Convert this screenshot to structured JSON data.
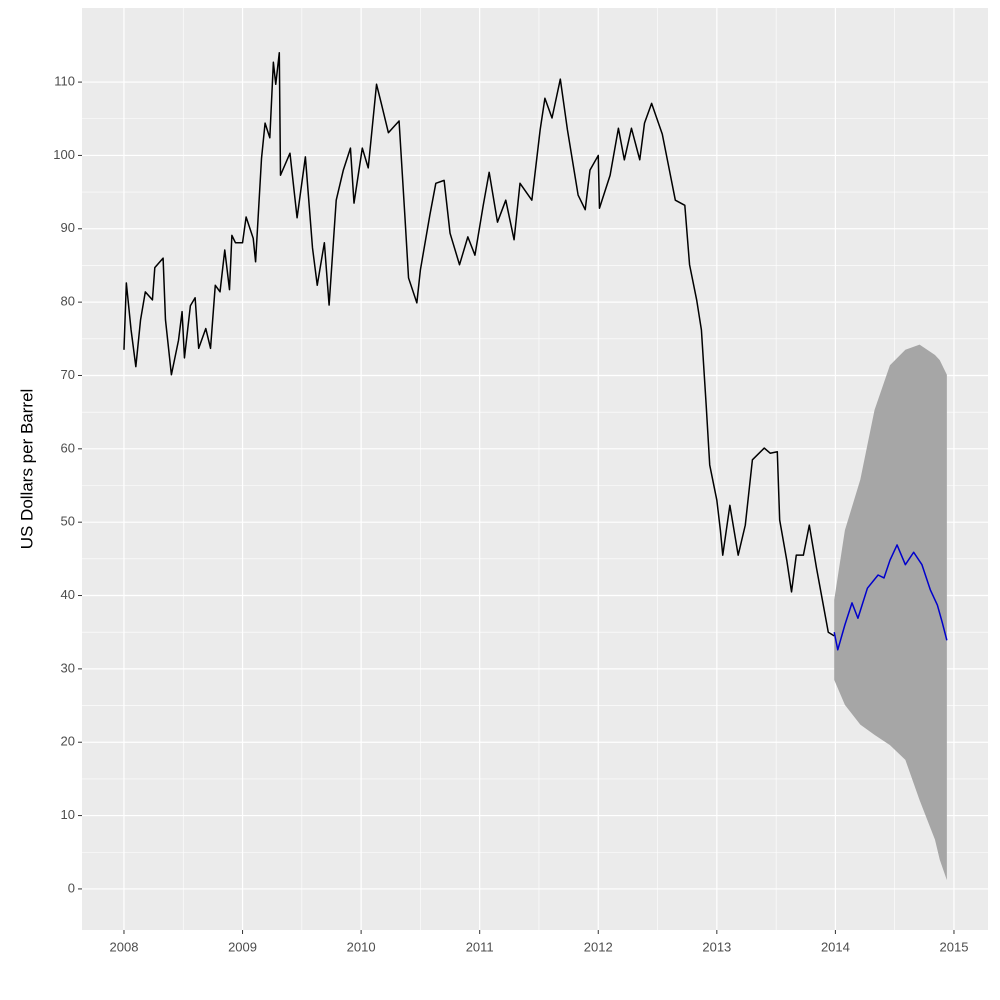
{
  "chart_data": {
    "type": "line",
    "y_label": "US Dollars per Barrel",
    "xlim": [
      2007.646,
      2015.287
    ],
    "ylim": [
      -5.6,
      120.1
    ],
    "xticks": [
      2008,
      2009,
      2010,
      2011,
      2012,
      2013,
      2014,
      2015
    ],
    "yticks": [
      0,
      10,
      20,
      30,
      40,
      50,
      60,
      70,
      80,
      90,
      100,
      110
    ],
    "grid": true,
    "minor_grid": true,
    "series": [
      {
        "color": "#000000",
        "x": [
          2008.0,
          2008.02,
          2008.06,
          2008.1,
          2008.14,
          2008.18,
          2008.24,
          2008.26,
          2008.33,
          2008.35,
          2008.4,
          2008.46,
          2008.49,
          2008.51,
          2008.56,
          2008.6,
          2008.63,
          2008.69,
          2008.73,
          2008.77,
          2008.81,
          2008.85,
          2008.89,
          2008.91,
          2008.94,
          2009.0,
          2009.03,
          2009.09,
          2009.11,
          2009.16,
          2009.19,
          2009.23,
          2009.26,
          2009.28,
          2009.31,
          2009.32,
          2009.4,
          2009.46,
          2009.53,
          2009.59,
          2009.63,
          2009.69,
          2009.73,
          2009.79,
          2009.85,
          2009.91,
          2009.94,
          2010.01,
          2010.06,
          2010.13,
          2010.17,
          2010.23,
          2010.32,
          2010.37,
          2010.4,
          2010.47,
          2010.5,
          2010.58,
          2010.63,
          2010.7,
          2010.75,
          2010.83,
          2010.9,
          2010.96,
          2011.03,
          2011.08,
          2011.15,
          2011.22,
          2011.29,
          2011.34,
          2011.44,
          2011.51,
          2011.55,
          2011.61,
          2011.68,
          2011.74,
          2011.83,
          2011.89,
          2011.93,
          2012.0,
          2012.01,
          2012.1,
          2012.17,
          2012.22,
          2012.28,
          2012.35,
          2012.39,
          2012.45,
          2012.54,
          2012.6,
          2012.65,
          2012.73,
          2012.77,
          2012.83,
          2012.87,
          2012.91,
          2012.94,
          2013.0,
          2013.03,
          2013.05,
          2013.11,
          2013.18,
          2013.24,
          2013.3,
          2013.4,
          2013.45,
          2013.51,
          2013.53,
          2013.59,
          2013.63,
          2013.67,
          2013.73,
          2013.78,
          2013.84,
          2013.89,
          2013.94,
          2013.99
        ],
        "values": [
          73.5,
          82.6,
          76.2,
          71.2,
          77.6,
          81.4,
          80.3,
          84.7,
          86.0,
          77.6,
          70.1,
          74.8,
          78.7,
          72.4,
          79.5,
          80.6,
          73.7,
          76.4,
          73.7,
          82.3,
          81.4,
          87.1,
          81.7,
          89.1,
          88.1,
          88.1,
          91.6,
          88.7,
          85.5,
          99.6,
          104.4,
          102.4,
          112.7,
          109.7,
          114.0,
          97.3,
          100.3,
          91.5,
          99.8,
          87.4,
          82.3,
          88.1,
          79.6,
          93.9,
          98.0,
          101.0,
          93.5,
          101.0,
          98.3,
          109.7,
          107.1,
          103.1,
          104.7,
          91.5,
          83.3,
          79.9,
          84.4,
          91.9,
          96.2,
          96.6,
          89.4,
          85.1,
          88.9,
          86.4,
          93.2,
          97.7,
          90.9,
          93.9,
          88.5,
          96.2,
          93.9,
          103.5,
          107.8,
          105.1,
          110.4,
          103.5,
          94.6,
          92.6,
          98.0,
          100.0,
          92.8,
          97.3,
          103.7,
          99.4,
          103.7,
          99.4,
          104.4,
          107.1,
          102.9,
          98.0,
          93.9,
          93.2,
          85.1,
          80.3,
          76.2,
          66.0,
          57.8,
          53.0,
          48.9,
          45.5,
          52.3,
          45.5,
          49.6,
          58.5,
          60.1,
          59.4,
          59.6,
          50.3,
          44.8,
          40.5,
          45.5,
          45.5,
          49.6,
          43.8,
          39.4,
          35.0,
          34.5
        ]
      },
      {
        "color": "#0000cc",
        "x": [
          2013.99,
          2014.02,
          2014.08,
          2014.14,
          2014.19,
          2014.27,
          2014.36,
          2014.41,
          2014.46,
          2014.52,
          2014.59,
          2014.66,
          2014.73,
          2014.8,
          2014.86,
          2014.9,
          2014.94
        ],
        "values": [
          35.0,
          32.6,
          36.0,
          39.0,
          36.9,
          41.0,
          42.8,
          42.4,
          44.8,
          46.9,
          44.2,
          45.9,
          44.2,
          40.8,
          38.7,
          36.4,
          33.9
        ]
      }
    ],
    "band": {
      "color": "#a6a6a6",
      "x": [
        2013.99,
        2014.08,
        2014.21,
        2014.33,
        2014.46,
        2014.59,
        2014.71,
        2014.84,
        2014.88,
        2014.94
      ],
      "lower": [
        28.5,
        25.1,
        22.4,
        21.0,
        19.6,
        17.6,
        12.1,
        6.7,
        4.0,
        1.2
      ],
      "upper": [
        39.4,
        48.9,
        55.8,
        65.3,
        71.4,
        73.5,
        74.2,
        72.8,
        72.1,
        70.1
      ]
    }
  }
}
